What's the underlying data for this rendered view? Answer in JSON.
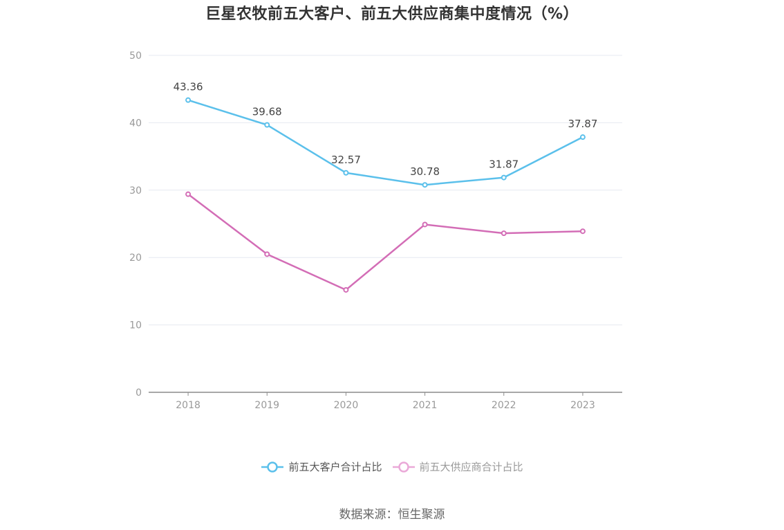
{
  "chart_data": {
    "type": "line",
    "title": "巨星农牧前五大客户、前五大供应商集中度情况（%）",
    "xlabel": "",
    "ylabel": "",
    "categories": [
      "2018",
      "2019",
      "2020",
      "2021",
      "2022",
      "2023"
    ],
    "ylim": [
      0,
      50
    ],
    "yticks": [
      "0",
      "10",
      "20",
      "30",
      "40",
      "50"
    ],
    "grid": true,
    "legend_position": "bottom",
    "series": [
      {
        "name": "前五大客户合计占比",
        "color": "#5bc0eb",
        "values": [
          43.36,
          39.68,
          32.57,
          30.78,
          31.87,
          37.87
        ],
        "labels": [
          "43.36",
          "39.68",
          "32.57",
          "30.78",
          "31.87",
          "37.87"
        ]
      },
      {
        "name": "前五大供应商合计占比",
        "color": "#d36db6",
        "values": [
          29.4,
          20.5,
          15.2,
          24.9,
          23.6,
          23.9
        ],
        "labels": []
      }
    ]
  },
  "source": "数据来源：恒生聚源"
}
